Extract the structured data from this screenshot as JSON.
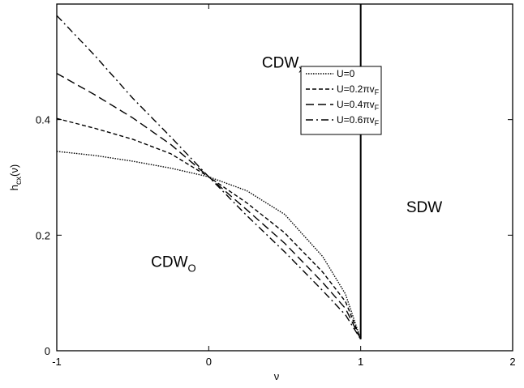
{
  "chart_data": {
    "type": "line",
    "title": "",
    "xlabel": "ν",
    "ylabel": {
      "main": "h",
      "sub": "cx",
      "suffix": "(ν)"
    },
    "xlim": [
      -1,
      2
    ],
    "ylim": [
      0,
      0.6
    ],
    "xticks": [
      "-1",
      "0",
      "1",
      "2"
    ],
    "yticks": [
      "0",
      "0.2",
      "0.4"
    ],
    "grid": false,
    "legend_position": "top-right",
    "series": [
      {
        "name": "U=0",
        "dash": "dotted",
        "x": [
          -1,
          -0.75,
          -0.5,
          -0.25,
          0,
          0.25,
          0.5,
          0.75,
          0.9,
          1
        ],
        "y": [
          0.345,
          0.338,
          0.328,
          0.316,
          0.301,
          0.277,
          0.236,
          0.163,
          0.098,
          0.02
        ]
      },
      {
        "name": "U=0.2πv_F",
        "label_main": "U=0.2πv",
        "label_sub": "F",
        "dash": "short-dash",
        "x": [
          -1,
          -0.75,
          -0.5,
          -0.25,
          0,
          0.25,
          0.5,
          0.75,
          0.9,
          1
        ],
        "y": [
          0.402,
          0.385,
          0.366,
          0.341,
          0.301,
          0.256,
          0.204,
          0.136,
          0.085,
          0.02
        ]
      },
      {
        "name": "U=0.4πv_F",
        "label_main": "U=0.4πv",
        "label_sub": "F",
        "dash": "long-dash",
        "x": [
          -1,
          -0.75,
          -0.5,
          -0.25,
          0,
          0.25,
          0.5,
          0.75,
          0.9,
          1
        ],
        "y": [
          0.48,
          0.443,
          0.403,
          0.357,
          0.301,
          0.244,
          0.186,
          0.118,
          0.073,
          0.02
        ]
      },
      {
        "name": "U=0.6πv_F",
        "label_main": "U=0.6πv",
        "label_sub": "F",
        "dash": "dash-dot",
        "x": [
          -1,
          -0.75,
          -0.5,
          -0.25,
          0,
          0.25,
          0.5,
          0.75,
          0.9,
          1
        ],
        "y": [
          0.58,
          0.511,
          0.437,
          0.37,
          0.301,
          0.234,
          0.171,
          0.104,
          0.062,
          0.02
        ]
      }
    ],
    "annotations": [
      {
        "main": "CDW",
        "sub": "x",
        "x": 0.35,
        "y": 0.49
      },
      {
        "main": "CDW",
        "sub": "O",
        "x": -0.38,
        "y": 0.145
      },
      {
        "main": "SDW",
        "sub": "",
        "x": 1.3,
        "y": 0.24
      }
    ],
    "vertical_line": {
      "x": 1,
      "y_from": 0.02,
      "y_to": 0.6
    }
  }
}
